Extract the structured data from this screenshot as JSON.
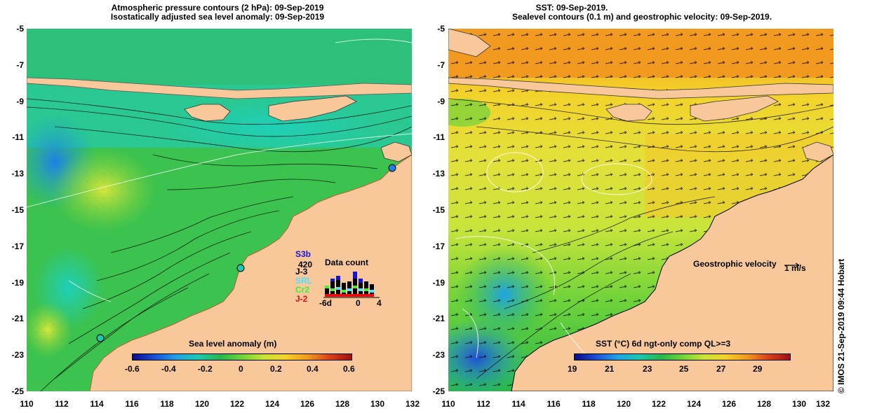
{
  "left_panel": {
    "title_line1": "Atmospheric pressure contours (2 hPa): 09-Sep-2019",
    "title_line2": "Isostatically adjusted sea level anomaly: 09-Sep-2019",
    "colorbar": {
      "title": "Sea level anomaly (m)",
      "tick_labels": [
        "-0.6",
        "-0.4",
        "-0.2",
        "0",
        "0.2",
        "0.4",
        "0.6"
      ],
      "colors": [
        "#0a0a8a",
        "#1e4fd6",
        "#1fa3e8",
        "#1ec9b0",
        "#27b84a",
        "#6fd33a",
        "#c8e43a",
        "#f3d22a",
        "#f19a1f",
        "#d8411a",
        "#a01010"
      ]
    },
    "data_count": {
      "title": "Data count",
      "max_label": "420",
      "x_labels": [
        "-6d",
        "0",
        "4"
      ],
      "satellites": [
        {
          "name": "S3b",
          "color": "#1515d8"
        },
        {
          "name": "J-3",
          "color": "#000000"
        },
        {
          "name": "SRL",
          "color": "#4fe0ff"
        },
        {
          "name": "Cr2",
          "color": "#3cf03c"
        },
        {
          "name": "J-2",
          "color": "#e01010"
        }
      ]
    }
  },
  "right_panel": {
    "title_line1": "SST: 09-Sep-2019.",
    "title_line2": "Sealevel contours (0.1 m) and geostrophic velocity: 09-Sep-2019.",
    "colorbar": {
      "title": "SST (°C) 6d ngt-only comp QL>=3",
      "tick_labels": [
        "19",
        "21",
        "23",
        "25",
        "27",
        "29"
      ],
      "colors": [
        "#0a0a8a",
        "#1e4fd6",
        "#1fa3e8",
        "#1ec9b0",
        "#27b84a",
        "#6fd33a",
        "#c8e43a",
        "#f3d22a",
        "#f19a1f",
        "#d8411a",
        "#a01010"
      ]
    },
    "velocity_legend": {
      "label": "Geostrophic velocity",
      "scale": "1 m/s"
    }
  },
  "axes": {
    "lat_labels": [
      "-5",
      "-7",
      "-9",
      "-11",
      "-13",
      "-15",
      "-17",
      "-19",
      "-21",
      "-23",
      "-25"
    ],
    "lon_labels": [
      "110",
      "112",
      "114",
      "116",
      "118",
      "120",
      "122",
      "124",
      "126",
      "128",
      "130",
      "132"
    ]
  },
  "credit": "© IMOS 21-Sep-2019 09:44 Hobart",
  "colors": {
    "land": "#f8c89a",
    "contour": "#000000"
  }
}
